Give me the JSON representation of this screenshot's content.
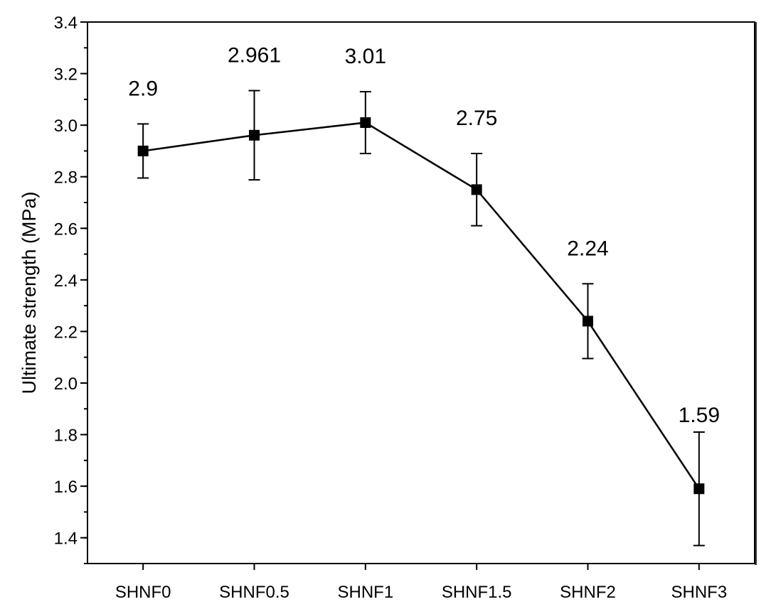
{
  "chart_data": {
    "type": "line",
    "title": "",
    "xlabel": "",
    "ylabel": "Ultimate strength (MPa)",
    "categories": [
      "SHNF0",
      "SHNF0.5",
      "SHNF1",
      "SHNF1.5",
      "SHNF2",
      "SHNF3"
    ],
    "values": [
      2.9,
      2.961,
      3.01,
      2.75,
      2.24,
      1.59
    ],
    "errors": [
      0.105,
      0.173,
      0.12,
      0.14,
      0.145,
      0.22
    ],
    "data_labels": [
      "2.9",
      "2.961",
      "3.01",
      "2.75",
      "2.24",
      "1.59"
    ],
    "ylim": [
      1.3,
      3.4
    ],
    "yticks": [
      "1.4",
      "1.6",
      "1.8",
      "2.0",
      "2.2",
      "2.4",
      "2.6",
      "2.8",
      "3.0",
      "3.2",
      "3.4"
    ],
    "grid": false,
    "marker": "square",
    "color": "#000000"
  }
}
